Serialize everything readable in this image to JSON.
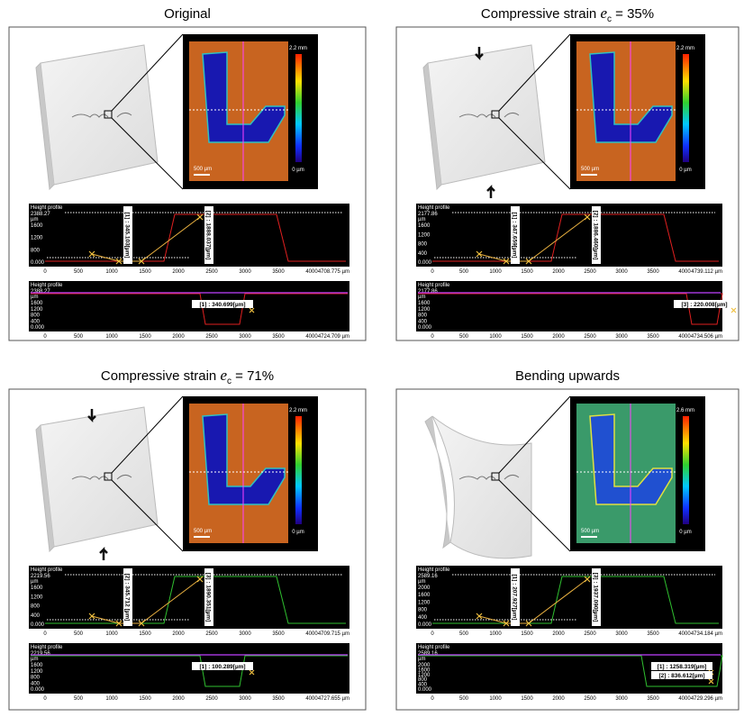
{
  "panels": [
    {
      "title": "Original",
      "map": {
        "max": "2.2 mm",
        "min": "0 µm",
        "scale": "500 µm"
      },
      "profiles": [
        {
          "label": "Height profile",
          "ytop": "2388.27",
          "unit": "µm",
          "yticks": [
            "1600",
            "1200",
            "800",
            "0.000"
          ],
          "xticks": [
            "0",
            "500",
            "1000",
            "1500",
            "2000",
            "2500",
            "3000",
            "3500",
            "4000"
          ],
          "xend": "4708.775 µm",
          "notes": [
            "[1] : 345.103[µm]",
            "[2] : 1888.037[µm]"
          ]
        },
        {
          "label": "Height profile",
          "ytop": "2388.27",
          "unit": "µm",
          "yticks": [
            "1600",
            "1200",
            "800",
            "400",
            "0.000"
          ],
          "xticks": [
            "0",
            "500",
            "1000",
            "1500",
            "2000",
            "2500",
            "3000",
            "3500",
            "4000"
          ],
          "xend": "4724.709 µm",
          "notes": [
            "[1] : 340.699[µm]"
          ]
        }
      ]
    },
    {
      "title": "Compressive strain ",
      "symbol": "e",
      "subscript": "c",
      "title_end": " = 35%",
      "map": {
        "max": "2.2 mm",
        "min": "0 µm",
        "scale": "500 µm"
      },
      "profiles": [
        {
          "label": "Height profile",
          "ytop": "2177.86",
          "unit": "µm",
          "yticks": [
            "1600",
            "1200",
            "800",
            "400",
            "0.000"
          ],
          "xticks": [
            "0",
            "500",
            "1000",
            "1500",
            "2000",
            "2500",
            "3000",
            "3500",
            "4000"
          ],
          "xend": "4739.112 µm",
          "notes": [
            "[1] : 347.659[µm]",
            "[2] : 1886.460[µm]"
          ]
        },
        {
          "label": "Height profile",
          "ytop": "2177.86",
          "unit": "µm",
          "yticks": [
            "1600",
            "1200",
            "800",
            "400",
            "0.000"
          ],
          "xticks": [
            "0",
            "500",
            "1000",
            "1500",
            "2000",
            "2500",
            "3000",
            "3500",
            "4000"
          ],
          "xend": "4734.506 µm",
          "notes": [
            "[3] : 220.008[µm]"
          ]
        }
      ]
    },
    {
      "title": "Compressive strain ",
      "symbol": "e",
      "subscript": "c",
      "title_end": " = 71%",
      "map": {
        "max": "2.2 mm",
        "min": "0 µm",
        "scale": "500 µm"
      },
      "profiles": [
        {
          "label": "Height profile",
          "ytop": "2219.56",
          "unit": "µm",
          "yticks": [
            "1600",
            "1200",
            "800",
            "400",
            "0.000"
          ],
          "xticks": [
            "0",
            "500",
            "1000",
            "1500",
            "2000",
            "2500",
            "3000",
            "3500",
            "4000"
          ],
          "xend": "4709.715 µm",
          "notes": [
            "[2] : 345.712 [µm]",
            "[3] : 1890.351[µm]"
          ]
        },
        {
          "label": "Height profile",
          "ytop": "2219.56",
          "unit": "µm",
          "yticks": [
            "1600",
            "1200",
            "800",
            "400",
            "0.000"
          ],
          "xticks": [
            "0",
            "500",
            "1000",
            "1500",
            "2000",
            "2500",
            "3000",
            "3500",
            "4000"
          ],
          "xend": "4727.655 µm",
          "notes": [
            "[1] : 100.289[µm]"
          ]
        }
      ]
    },
    {
      "title": "Bending upwards",
      "map": {
        "max": "2.6 mm",
        "min": "0 µm",
        "scale": "500 µm"
      },
      "profiles": [
        {
          "label": "Height profile",
          "ytop": "2589.16",
          "unit": "µm",
          "yticks": [
            "2000",
            "1600",
            "1200",
            "800",
            "400",
            "0.000"
          ],
          "xticks": [
            "0",
            "500",
            "1000",
            "1500",
            "2000",
            "2500",
            "3000",
            "3500",
            "4000"
          ],
          "xend": "4734.184 µm",
          "notes": [
            "[1] : 207.927[µm]",
            "[3] : 1937.090[µm]"
          ]
        },
        {
          "label": "Height profile",
          "ytop": "2589.16",
          "unit": "µm",
          "yticks": [
            "2000",
            "1600",
            "1200",
            "800",
            "400",
            "0.000"
          ],
          "xticks": [
            "0",
            "500",
            "1000",
            "1500",
            "2000",
            "2500",
            "3000",
            "3500",
            "4000"
          ],
          "xend": "4729.296 µm",
          "notes": [
            "[1] : 1258.319[µm]",
            "[2] : 836.612[µm]"
          ]
        }
      ]
    }
  ]
}
